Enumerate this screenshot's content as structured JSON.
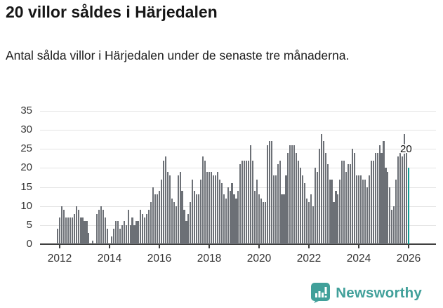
{
  "header": {
    "title": "20 villor såldes i Härjedalen",
    "subtitle": "Antal sålda villor i Härjedalen under de senaste tre månaderna."
  },
  "annotation": {
    "last_value_label": "20"
  },
  "footer": {
    "brand": "Newsworthy"
  },
  "colors": {
    "bar": "#6c7076",
    "highlight": "#109b92",
    "grid": "#e3e3e3",
    "axis": "#404040",
    "tick_text": "#333333",
    "brand_teal": "#41a09a"
  },
  "chart_data": {
    "type": "bar",
    "title": "20 villor såldes i Härjedalen",
    "subtitle": "Antal sålda villor i Härjedalen under de senaste tre månaderna.",
    "unit": "sålda villor (rullande 3 månader)",
    "start_month": "2011-12",
    "end_month": "2026-01",
    "ylim": [
      0,
      35
    ],
    "y_ticks": [
      0,
      5,
      10,
      15,
      20,
      25,
      30,
      35
    ],
    "x_tick_years": [
      "2012",
      "2014",
      "2016",
      "2018",
      "2020",
      "2022",
      "2024",
      "2026"
    ],
    "grid": "horizontal-only",
    "highlight_last_bar": true,
    "last_value": 20,
    "values": [
      4,
      7,
      10,
      9,
      7,
      7,
      7,
      7,
      8,
      10,
      9,
      7,
      7,
      6,
      6,
      3,
      0,
      1,
      0,
      8,
      9,
      10,
      9,
      7,
      4,
      0,
      2,
      4,
      6,
      6,
      4,
      5,
      6,
      5,
      9,
      5,
      7,
      5,
      6,
      6,
      9,
      8,
      7,
      8,
      9,
      11,
      15,
      13,
      13,
      14,
      17,
      22,
      23,
      19,
      18,
      12,
      11,
      10,
      18,
      19,
      14,
      9,
      6,
      8,
      11,
      17,
      14,
      13,
      13,
      17,
      23,
      22,
      19,
      19,
      19,
      18,
      18,
      19,
      17,
      16,
      13,
      12,
      15,
      14,
      16,
      13,
      12,
      14,
      21,
      22,
      22,
      22,
      22,
      26,
      22,
      14,
      17,
      13,
      12,
      11,
      11,
      26,
      27,
      27,
      18,
      18,
      21,
      22,
      13,
      13,
      18,
      24,
      26,
      26,
      26,
      24,
      22,
      20,
      18,
      16,
      12,
      11,
      13,
      10,
      20,
      19,
      25,
      29,
      27,
      24,
      21,
      17,
      17,
      11,
      14,
      13,
      17,
      22,
      22,
      19,
      21,
      21,
      25,
      24,
      18,
      18,
      18,
      17,
      17,
      15,
      18,
      22,
      22,
      24,
      24,
      26,
      24,
      27,
      20,
      19,
      15,
      9,
      10,
      17,
      23,
      24,
      23,
      29,
      24,
      20
    ]
  }
}
